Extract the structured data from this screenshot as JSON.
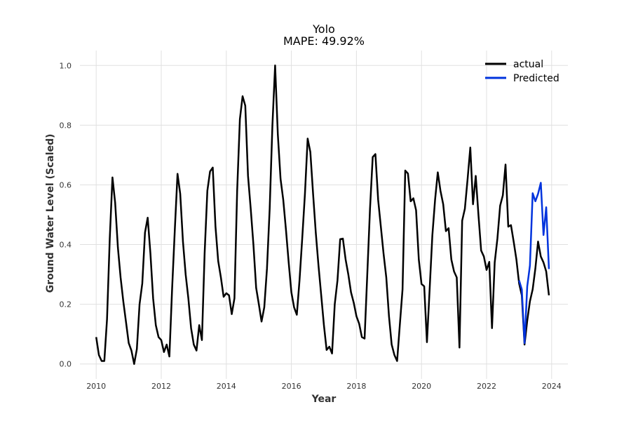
{
  "chart_data": {
    "type": "line",
    "title": "Yolo",
    "subtitle": "MAPE: 49.92%",
    "xlabel": "Year",
    "ylabel": "Ground Water Level (Scaled)",
    "xlim": [
      2009.5,
      2024.5
    ],
    "ylim": [
      -0.05,
      1.05
    ],
    "x_ticks": [
      2010,
      2012,
      2014,
      2016,
      2018,
      2020,
      2022,
      2024
    ],
    "y_ticks": [
      0.0,
      0.2,
      0.4,
      0.6,
      0.8,
      1.0
    ],
    "grid": true,
    "legend_position": "top-right",
    "series": [
      {
        "name": "actual",
        "color": "#000000",
        "points": [
          [
            2010.0,
            0.09
          ],
          [
            2010.083,
            0.03
          ],
          [
            2010.167,
            0.01
          ],
          [
            2010.25,
            0.01
          ],
          [
            2010.333,
            0.15
          ],
          [
            2010.417,
            0.42
          ],
          [
            2010.5,
            0.625
          ],
          [
            2010.583,
            0.54
          ],
          [
            2010.667,
            0.39
          ],
          [
            2010.75,
            0.29
          ],
          [
            2010.833,
            0.21
          ],
          [
            2010.917,
            0.14
          ],
          [
            2011.0,
            0.07
          ],
          [
            2011.083,
            0.045
          ],
          [
            2011.167,
            0.0
          ],
          [
            2011.25,
            0.05
          ],
          [
            2011.333,
            0.2
          ],
          [
            2011.417,
            0.27
          ],
          [
            2011.5,
            0.44
          ],
          [
            2011.583,
            0.49
          ],
          [
            2011.667,
            0.37
          ],
          [
            2011.75,
            0.22
          ],
          [
            2011.833,
            0.13
          ],
          [
            2011.917,
            0.09
          ],
          [
            2012.0,
            0.08
          ],
          [
            2012.083,
            0.04
          ],
          [
            2012.167,
            0.065
          ],
          [
            2012.25,
            0.025
          ],
          [
            2012.333,
            0.25
          ],
          [
            2012.417,
            0.45
          ],
          [
            2012.5,
            0.637
          ],
          [
            2012.583,
            0.57
          ],
          [
            2012.667,
            0.41
          ],
          [
            2012.75,
            0.3
          ],
          [
            2012.833,
            0.22
          ],
          [
            2012.917,
            0.12
          ],
          [
            2013.0,
            0.065
          ],
          [
            2013.083,
            0.045
          ],
          [
            2013.167,
            0.13
          ],
          [
            2013.25,
            0.08
          ],
          [
            2013.333,
            0.37
          ],
          [
            2013.417,
            0.58
          ],
          [
            2013.5,
            0.645
          ],
          [
            2013.583,
            0.658
          ],
          [
            2013.667,
            0.46
          ],
          [
            2013.75,
            0.345
          ],
          [
            2013.833,
            0.29
          ],
          [
            2013.917,
            0.225
          ],
          [
            2014.0,
            0.237
          ],
          [
            2014.083,
            0.23
          ],
          [
            2014.167,
            0.167
          ],
          [
            2014.25,
            0.22
          ],
          [
            2014.333,
            0.58
          ],
          [
            2014.417,
            0.82
          ],
          [
            2014.5,
            0.897
          ],
          [
            2014.583,
            0.865
          ],
          [
            2014.667,
            0.63
          ],
          [
            2014.75,
            0.52
          ],
          [
            2014.833,
            0.4
          ],
          [
            2014.917,
            0.255
          ],
          [
            2015.0,
            0.2
          ],
          [
            2015.083,
            0.142
          ],
          [
            2015.167,
            0.19
          ],
          [
            2015.25,
            0.32
          ],
          [
            2015.333,
            0.52
          ],
          [
            2015.417,
            0.8
          ],
          [
            2015.5,
            1.0
          ],
          [
            2015.583,
            0.77
          ],
          [
            2015.667,
            0.62
          ],
          [
            2015.75,
            0.55
          ],
          [
            2015.833,
            0.45
          ],
          [
            2015.917,
            0.34
          ],
          [
            2016.0,
            0.24
          ],
          [
            2016.083,
            0.19
          ],
          [
            2016.167,
            0.165
          ],
          [
            2016.25,
            0.28
          ],
          [
            2016.333,
            0.42
          ],
          [
            2016.417,
            0.57
          ],
          [
            2016.5,
            0.755
          ],
          [
            2016.583,
            0.71
          ],
          [
            2016.667,
            0.57
          ],
          [
            2016.75,
            0.44
          ],
          [
            2016.833,
            0.33
          ],
          [
            2016.917,
            0.23
          ],
          [
            2017.0,
            0.13
          ],
          [
            2017.083,
            0.047
          ],
          [
            2017.167,
            0.058
          ],
          [
            2017.25,
            0.035
          ],
          [
            2017.333,
            0.2
          ],
          [
            2017.417,
            0.28
          ],
          [
            2017.5,
            0.418
          ],
          [
            2017.583,
            0.42
          ],
          [
            2017.667,
            0.35
          ],
          [
            2017.75,
            0.3
          ],
          [
            2017.833,
            0.24
          ],
          [
            2017.917,
            0.205
          ],
          [
            2018.0,
            0.16
          ],
          [
            2018.083,
            0.135
          ],
          [
            2018.167,
            0.09
          ],
          [
            2018.25,
            0.085
          ],
          [
            2018.333,
            0.3
          ],
          [
            2018.417,
            0.52
          ],
          [
            2018.5,
            0.693
          ],
          [
            2018.583,
            0.703
          ],
          [
            2018.667,
            0.55
          ],
          [
            2018.75,
            0.46
          ],
          [
            2018.833,
            0.37
          ],
          [
            2018.917,
            0.29
          ],
          [
            2019.0,
            0.16
          ],
          [
            2019.083,
            0.065
          ],
          [
            2019.167,
            0.03
          ],
          [
            2019.25,
            0.01
          ],
          [
            2019.333,
            0.13
          ],
          [
            2019.417,
            0.25
          ],
          [
            2019.5,
            0.648
          ],
          [
            2019.583,
            0.638
          ],
          [
            2019.667,
            0.545
          ],
          [
            2019.75,
            0.555
          ],
          [
            2019.833,
            0.515
          ],
          [
            2019.917,
            0.35
          ],
          [
            2020.0,
            0.268
          ],
          [
            2020.083,
            0.26
          ],
          [
            2020.167,
            0.073
          ],
          [
            2020.25,
            0.25
          ],
          [
            2020.333,
            0.43
          ],
          [
            2020.417,
            0.55
          ],
          [
            2020.5,
            0.642
          ],
          [
            2020.583,
            0.58
          ],
          [
            2020.667,
            0.535
          ],
          [
            2020.75,
            0.445
          ],
          [
            2020.833,
            0.455
          ],
          [
            2020.917,
            0.35
          ],
          [
            2021.0,
            0.31
          ],
          [
            2021.083,
            0.29
          ],
          [
            2021.167,
            0.055
          ],
          [
            2021.25,
            0.48
          ],
          [
            2021.333,
            0.52
          ],
          [
            2021.417,
            0.62
          ],
          [
            2021.5,
            0.725
          ],
          [
            2021.583,
            0.535
          ],
          [
            2021.667,
            0.63
          ],
          [
            2021.75,
            0.5
          ],
          [
            2021.833,
            0.38
          ],
          [
            2021.917,
            0.36
          ],
          [
            2022.0,
            0.315
          ],
          [
            2022.083,
            0.342
          ],
          [
            2022.167,
            0.12
          ],
          [
            2022.25,
            0.34
          ],
          [
            2022.333,
            0.42
          ],
          [
            2022.417,
            0.53
          ],
          [
            2022.5,
            0.565
          ],
          [
            2022.583,
            0.668
          ],
          [
            2022.667,
            0.46
          ],
          [
            2022.75,
            0.465
          ],
          [
            2022.833,
            0.41
          ],
          [
            2022.917,
            0.35
          ],
          [
            2023.0,
            0.27
          ],
          [
            2023.083,
            0.23
          ],
          [
            2023.167,
            0.065
          ],
          [
            2023.25,
            0.145
          ],
          [
            2023.333,
            0.21
          ],
          [
            2023.417,
            0.25
          ],
          [
            2023.5,
            0.32
          ],
          [
            2023.583,
            0.41
          ],
          [
            2023.667,
            0.36
          ],
          [
            2023.75,
            0.34
          ],
          [
            2023.833,
            0.31
          ],
          [
            2023.917,
            0.23
          ]
        ]
      },
      {
        "name": "Predicted",
        "color": "#0033dd",
        "points": [
          [
            2023.0,
            0.28
          ],
          [
            2023.083,
            0.25
          ],
          [
            2023.167,
            0.07
          ],
          [
            2023.25,
            0.26
          ],
          [
            2023.333,
            0.33
          ],
          [
            2023.417,
            0.572
          ],
          [
            2023.5,
            0.545
          ],
          [
            2023.583,
            0.57
          ],
          [
            2023.667,
            0.607
          ],
          [
            2023.75,
            0.432
          ],
          [
            2023.833,
            0.525
          ],
          [
            2023.917,
            0.318
          ]
        ]
      }
    ]
  }
}
